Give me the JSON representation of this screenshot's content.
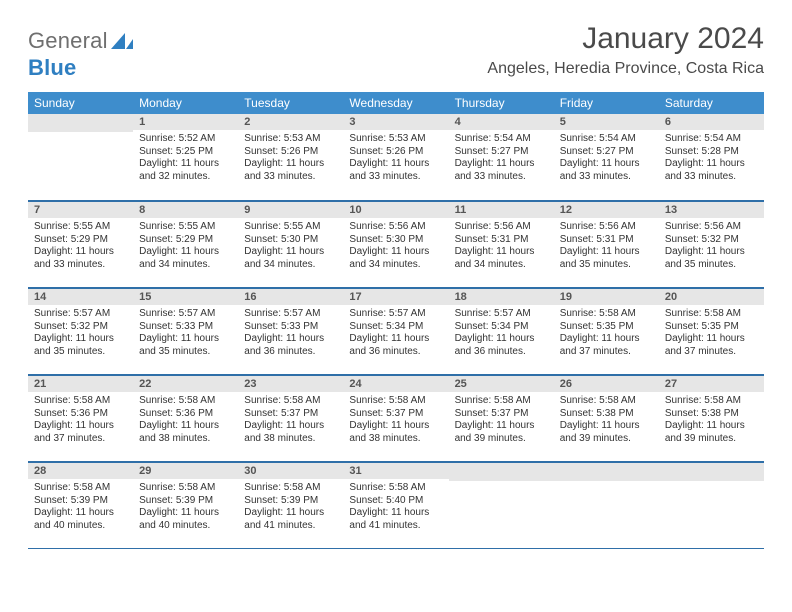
{
  "brand": {
    "name_part1": "General",
    "name_part2": "Blue"
  },
  "title": "January 2024",
  "location": "Angeles, Heredia Province, Costa Rica",
  "colors": {
    "header_bg": "#3e8dcc",
    "rule": "#2f6fa8",
    "daynum_bg": "#e6e6e6",
    "brand_blue": "#2f7fc1",
    "text": "#333333"
  },
  "weekdays": [
    "Sunday",
    "Monday",
    "Tuesday",
    "Wednesday",
    "Thursday",
    "Friday",
    "Saturday"
  ],
  "grid": [
    [
      null,
      {
        "n": "1",
        "sr": "5:52 AM",
        "ss": "5:25 PM",
        "dl": "11 hours and 32 minutes."
      },
      {
        "n": "2",
        "sr": "5:53 AM",
        "ss": "5:26 PM",
        "dl": "11 hours and 33 minutes."
      },
      {
        "n": "3",
        "sr": "5:53 AM",
        "ss": "5:26 PM",
        "dl": "11 hours and 33 minutes."
      },
      {
        "n": "4",
        "sr": "5:54 AM",
        "ss": "5:27 PM",
        "dl": "11 hours and 33 minutes."
      },
      {
        "n": "5",
        "sr": "5:54 AM",
        "ss": "5:27 PM",
        "dl": "11 hours and 33 minutes."
      },
      {
        "n": "6",
        "sr": "5:54 AM",
        "ss": "5:28 PM",
        "dl": "11 hours and 33 minutes."
      }
    ],
    [
      {
        "n": "7",
        "sr": "5:55 AM",
        "ss": "5:29 PM",
        "dl": "11 hours and 33 minutes."
      },
      {
        "n": "8",
        "sr": "5:55 AM",
        "ss": "5:29 PM",
        "dl": "11 hours and 34 minutes."
      },
      {
        "n": "9",
        "sr": "5:55 AM",
        "ss": "5:30 PM",
        "dl": "11 hours and 34 minutes."
      },
      {
        "n": "10",
        "sr": "5:56 AM",
        "ss": "5:30 PM",
        "dl": "11 hours and 34 minutes."
      },
      {
        "n": "11",
        "sr": "5:56 AM",
        "ss": "5:31 PM",
        "dl": "11 hours and 34 minutes."
      },
      {
        "n": "12",
        "sr": "5:56 AM",
        "ss": "5:31 PM",
        "dl": "11 hours and 35 minutes."
      },
      {
        "n": "13",
        "sr": "5:56 AM",
        "ss": "5:32 PM",
        "dl": "11 hours and 35 minutes."
      }
    ],
    [
      {
        "n": "14",
        "sr": "5:57 AM",
        "ss": "5:32 PM",
        "dl": "11 hours and 35 minutes."
      },
      {
        "n": "15",
        "sr": "5:57 AM",
        "ss": "5:33 PM",
        "dl": "11 hours and 35 minutes."
      },
      {
        "n": "16",
        "sr": "5:57 AM",
        "ss": "5:33 PM",
        "dl": "11 hours and 36 minutes."
      },
      {
        "n": "17",
        "sr": "5:57 AM",
        "ss": "5:34 PM",
        "dl": "11 hours and 36 minutes."
      },
      {
        "n": "18",
        "sr": "5:57 AM",
        "ss": "5:34 PM",
        "dl": "11 hours and 36 minutes."
      },
      {
        "n": "19",
        "sr": "5:58 AM",
        "ss": "5:35 PM",
        "dl": "11 hours and 37 minutes."
      },
      {
        "n": "20",
        "sr": "5:58 AM",
        "ss": "5:35 PM",
        "dl": "11 hours and 37 minutes."
      }
    ],
    [
      {
        "n": "21",
        "sr": "5:58 AM",
        "ss": "5:36 PM",
        "dl": "11 hours and 37 minutes."
      },
      {
        "n": "22",
        "sr": "5:58 AM",
        "ss": "5:36 PM",
        "dl": "11 hours and 38 minutes."
      },
      {
        "n": "23",
        "sr": "5:58 AM",
        "ss": "5:37 PM",
        "dl": "11 hours and 38 minutes."
      },
      {
        "n": "24",
        "sr": "5:58 AM",
        "ss": "5:37 PM",
        "dl": "11 hours and 38 minutes."
      },
      {
        "n": "25",
        "sr": "5:58 AM",
        "ss": "5:37 PM",
        "dl": "11 hours and 39 minutes."
      },
      {
        "n": "26",
        "sr": "5:58 AM",
        "ss": "5:38 PM",
        "dl": "11 hours and 39 minutes."
      },
      {
        "n": "27",
        "sr": "5:58 AM",
        "ss": "5:38 PM",
        "dl": "11 hours and 39 minutes."
      }
    ],
    [
      {
        "n": "28",
        "sr": "5:58 AM",
        "ss": "5:39 PM",
        "dl": "11 hours and 40 minutes."
      },
      {
        "n": "29",
        "sr": "5:58 AM",
        "ss": "5:39 PM",
        "dl": "11 hours and 40 minutes."
      },
      {
        "n": "30",
        "sr": "5:58 AM",
        "ss": "5:39 PM",
        "dl": "11 hours and 41 minutes."
      },
      {
        "n": "31",
        "sr": "5:58 AM",
        "ss": "5:40 PM",
        "dl": "11 hours and 41 minutes."
      },
      null,
      null,
      null
    ]
  ],
  "labels": {
    "sunrise": "Sunrise:",
    "sunset": "Sunset:",
    "daylight": "Daylight:"
  }
}
